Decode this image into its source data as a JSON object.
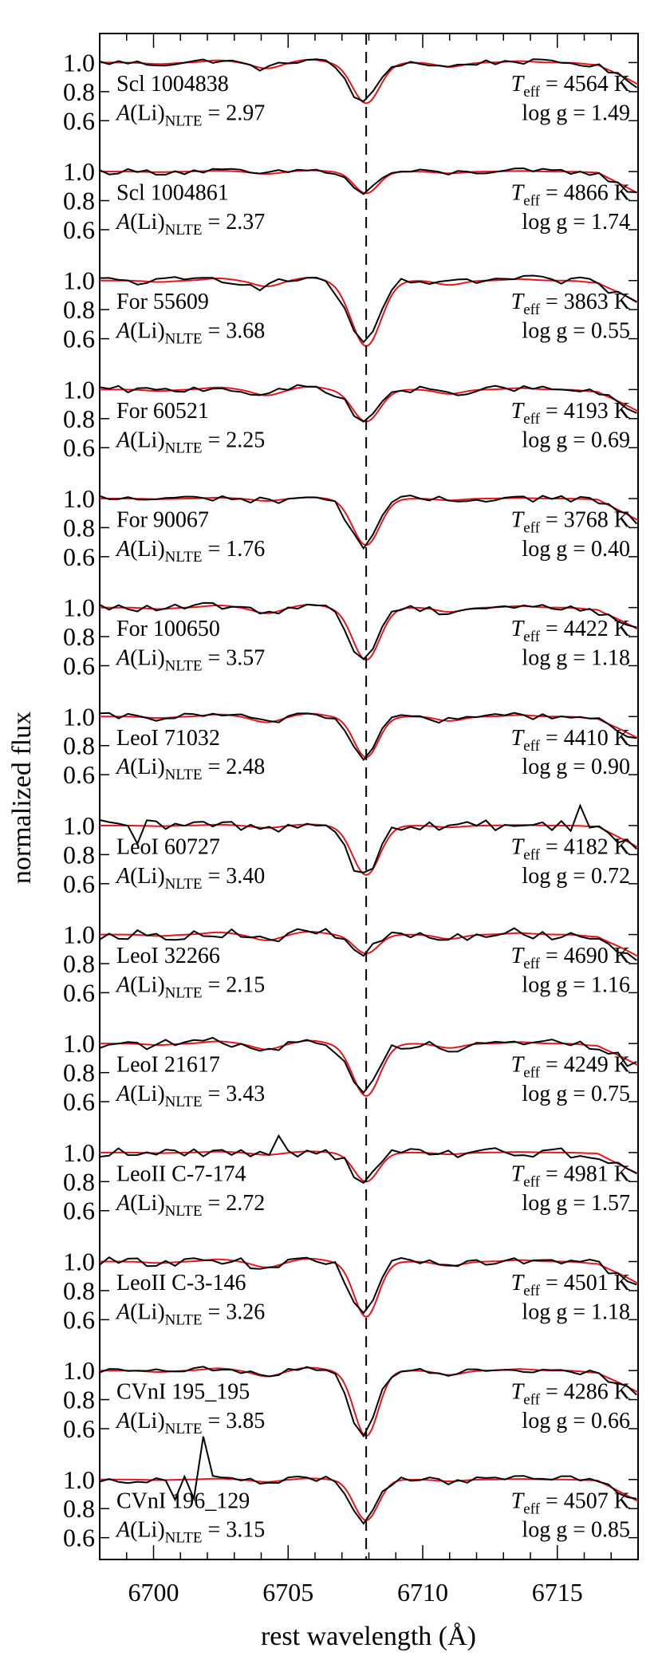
{
  "chart_data": {
    "type": "line",
    "xlabel": "rest wavelength (Å)",
    "ylabel": "normalized flux",
    "xlim": [
      6698,
      6718
    ],
    "x_ticks": [
      6700,
      6705,
      6710,
      6715
    ],
    "x_tick_labels": [
      "6700",
      "6705",
      "6710",
      "6715"
    ],
    "y_ticks": [
      0.6,
      0.8,
      1.0
    ],
    "y_tick_labels": [
      "0.6",
      "0.8",
      "1.0"
    ],
    "ylim_per_panel": [
      0.45,
      1.2
    ],
    "reference_line_x": 6707.9,
    "series_colors": {
      "observed": "#000000",
      "model": "#e8141c"
    },
    "panels": [
      {
        "star": "Scl 1004838",
        "ali": "= 2.97",
        "teff": "= 4564 K",
        "logg": "log g = 1.49",
        "depth": 0.28,
        "width": 0.5,
        "noise": 0.02,
        "spikes": []
      },
      {
        "star": "Scl 1004861",
        "ali": "= 2.37",
        "teff": "= 4866 K",
        "logg": "log g = 1.74",
        "depth": 0.15,
        "width": 0.45,
        "noise": 0.02,
        "spikes": []
      },
      {
        "star": "For 55609",
        "ali": "= 3.68",
        "teff": "= 3863 K",
        "logg": "log g = 0.55",
        "depth": 0.45,
        "width": 0.55,
        "noise": 0.03,
        "spikes": []
      },
      {
        "star": "For 60521",
        "ali": "= 2.25",
        "teff": "= 4193 K",
        "logg": "log g = 0.69",
        "depth": 0.22,
        "width": 0.5,
        "noise": 0.025,
        "spikes": []
      },
      {
        "star": "For 90067",
        "ali": "= 1.76",
        "teff": "= 3768 K",
        "logg": "log g = 0.40",
        "depth": 0.32,
        "width": 0.5,
        "noise": 0.025,
        "spikes": []
      },
      {
        "star": "For 100650",
        "ali": "= 3.57",
        "teff": "= 4422 K",
        "logg": "log g = 1.18",
        "depth": 0.36,
        "width": 0.5,
        "noise": 0.025,
        "spikes": []
      },
      {
        "star": "LeoI 71032",
        "ali": "= 2.48",
        "teff": "= 4410 K",
        "logg": "log g = 0.90",
        "depth": 0.28,
        "width": 0.45,
        "noise": 0.025,
        "spikes": []
      },
      {
        "star": "LeoI 60727",
        "ali": "= 3.40",
        "teff": "= 4182 K",
        "logg": "log g = 0.72",
        "depth": 0.34,
        "width": 0.5,
        "noise": 0.04,
        "spikes": [
          [
            6699.5,
            0.22
          ],
          [
            6715.8,
            0.18
          ]
        ]
      },
      {
        "star": "LeoI 32266",
        "ali": "= 2.15",
        "teff": "= 4690 K",
        "logg": "log g = 1.16",
        "depth": 0.13,
        "width": 0.45,
        "noise": 0.035,
        "spikes": []
      },
      {
        "star": "LeoI 21617",
        "ali": "= 3.43",
        "teff": "= 4249 K",
        "logg": "log g = 0.75",
        "depth": 0.36,
        "width": 0.5,
        "noise": 0.035,
        "spikes": []
      },
      {
        "star": "LeoII C-7-174",
        "ali": "= 2.72",
        "teff": "= 4981 K",
        "logg": "log g = 1.57",
        "depth": 0.2,
        "width": 0.45,
        "noise": 0.035,
        "spikes": [
          [
            6704.7,
            0.15
          ]
        ]
      },
      {
        "star": "LeoII C-3-146",
        "ali": "= 3.26",
        "teff": "= 4501 K",
        "logg": "log g = 1.18",
        "depth": 0.38,
        "width": 0.45,
        "noise": 0.03,
        "spikes": []
      },
      {
        "star": "CVnI 195_195",
        "ali": "= 3.85",
        "teff": "= 4286 K",
        "logg": "log g = 0.66",
        "depth": 0.45,
        "width": 0.45,
        "noise": 0.02,
        "spikes": []
      },
      {
        "star": "CVnI 196_129",
        "ali": "= 3.15",
        "teff": "= 4507 K",
        "logg": "log g = 0.85",
        "depth": 0.28,
        "width": 0.45,
        "noise": 0.025,
        "spikes": [
          [
            6700.9,
            0.3
          ],
          [
            6701.6,
            0.3
          ],
          [
            6701.9,
            0.3
          ]
        ]
      }
    ]
  }
}
